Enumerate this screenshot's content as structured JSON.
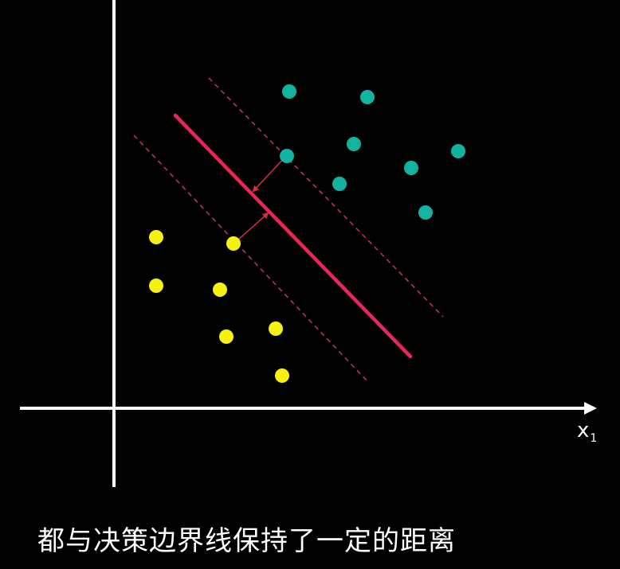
{
  "diagram": {
    "x_axis_label": "x",
    "x_axis_subscript": "1",
    "colors": {
      "background": "#000000",
      "axes": "#ffffff",
      "decision_boundary": "#e8265a",
      "margin_lines": "#c8384f",
      "margin_arrows": "#d8303f",
      "class_a": "#12b3a0",
      "class_b": "#f7f20c"
    }
  },
  "caption": "都与决策边界线保持了一定的距离"
}
